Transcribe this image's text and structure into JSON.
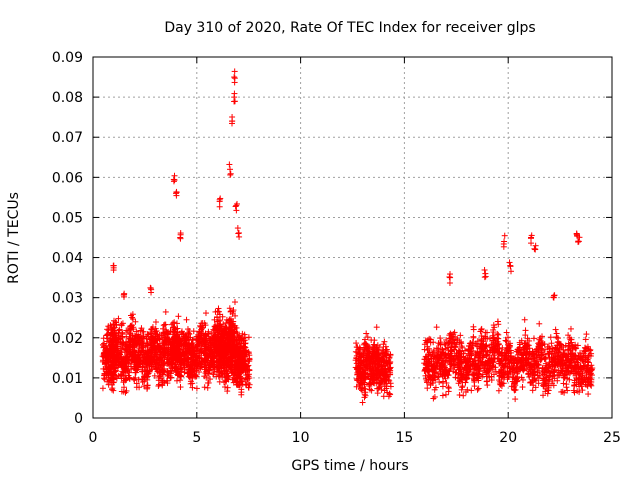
{
  "chart_data": {
    "type": "scatter",
    "title": "Day 310 of 2020, Rate Of TEC Index for receiver glps",
    "xlabel": "GPS time / hours",
    "ylabel": "ROTI / TECUs",
    "xlim": [
      0,
      25
    ],
    "ylim": [
      0,
      0.09
    ],
    "x_ticks": [
      0,
      5,
      10,
      15,
      20,
      25
    ],
    "x_tick_labels": [
      "0",
      "5",
      "10",
      "15",
      "20",
      "25"
    ],
    "y_ticks": [
      0,
      0.01,
      0.02,
      0.03,
      0.04,
      0.05,
      0.06,
      0.07,
      0.08,
      0.09
    ],
    "y_tick_labels": [
      "0",
      "0.01",
      "0.02",
      "0.03",
      "0.04",
      "0.05",
      "0.06",
      "0.07",
      "0.08",
      "0.09"
    ],
    "grid": true,
    "marker": "+",
    "color": "#ff0000",
    "series": [
      {
        "name": "ROTI",
        "x": [
          0.6,
          0.8,
          0.9,
          1.0,
          1.1,
          1.3,
          1.5,
          1.7,
          1.9,
          2.1,
          2.3,
          2.5,
          2.7,
          2.9,
          3.1,
          3.3,
          3.5,
          3.7,
          3.9,
          4.0,
          4.1,
          4.3,
          4.5,
          4.7,
          4.9,
          5.1,
          5.3,
          5.5,
          5.7,
          5.9,
          6.0,
          6.1,
          6.2,
          6.3,
          6.4,
          6.5,
          6.6,
          6.7,
          6.8,
          6.9,
          7.0,
          7.1,
          7.2,
          7.4,
          12.8,
          13.0,
          13.2,
          13.4,
          13.6,
          13.8,
          14.0,
          14.2,
          16.1,
          16.4,
          16.7,
          17.0,
          17.3,
          17.6,
          17.9,
          18.2,
          18.5,
          18.8,
          19.1,
          19.4,
          19.7,
          20.0,
          20.3,
          20.6,
          20.9,
          21.2,
          21.5,
          21.8,
          22.1,
          22.4,
          22.7,
          23.0,
          23.3,
          23.6,
          23.9,
          1.0,
          3.9,
          4.0,
          6.1,
          6.8,
          6.8,
          6.7,
          6.6,
          6.9,
          7.0,
          4.2,
          1.5,
          2.8,
          17.2,
          18.9,
          19.8,
          20.1,
          21.1,
          21.3,
          23.3,
          23.4,
          22.2
        ],
        "y": [
          0.014,
          0.017,
          0.012,
          0.02,
          0.015,
          0.018,
          0.013,
          0.016,
          0.019,
          0.014,
          0.017,
          0.012,
          0.015,
          0.018,
          0.016,
          0.013,
          0.019,
          0.015,
          0.017,
          0.02,
          0.014,
          0.016,
          0.018,
          0.013,
          0.015,
          0.017,
          0.019,
          0.014,
          0.016,
          0.018,
          0.021,
          0.015,
          0.017,
          0.019,
          0.013,
          0.016,
          0.018,
          0.022,
          0.015,
          0.017,
          0.012,
          0.014,
          0.016,
          0.013,
          0.013,
          0.011,
          0.014,
          0.012,
          0.015,
          0.011,
          0.013,
          0.012,
          0.014,
          0.012,
          0.015,
          0.013,
          0.016,
          0.014,
          0.012,
          0.015,
          0.013,
          0.016,
          0.014,
          0.017,
          0.013,
          0.015,
          0.012,
          0.014,
          0.016,
          0.013,
          0.015,
          0.012,
          0.014,
          0.016,
          0.013,
          0.015,
          0.012,
          0.014,
          0.013,
          0.038,
          0.059,
          0.056,
          0.054,
          0.085,
          0.08,
          0.074,
          0.062,
          0.053,
          0.046,
          0.045,
          0.031,
          0.032,
          0.035,
          0.036,
          0.044,
          0.038,
          0.045,
          0.042,
          0.046,
          0.044,
          0.03
        ]
      }
    ]
  }
}
